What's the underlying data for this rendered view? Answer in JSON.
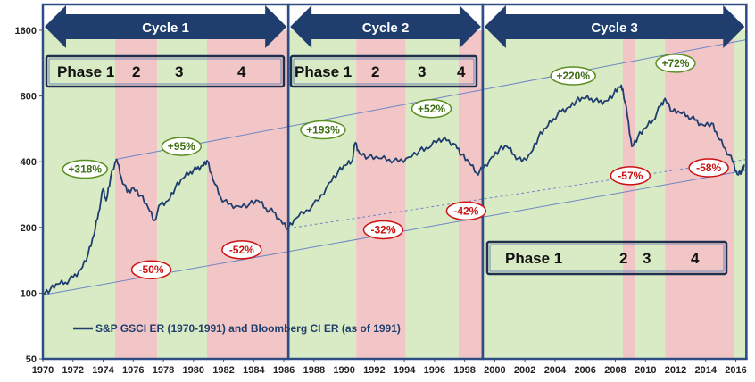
{
  "chart_data": {
    "type": "line",
    "y_scale": "log",
    "xlim": [
      1970,
      2016.8
    ],
    "ylim": [
      50,
      1600
    ],
    "x_ticks": [
      1970,
      1972,
      1974,
      1976,
      1978,
      1980,
      1982,
      1984,
      1986,
      1988,
      1990,
      1992,
      1994,
      1996,
      1998,
      2000,
      2002,
      2004,
      2006,
      2008,
      2010,
      2012,
      2014,
      2016
    ],
    "x_tick_labels": [
      "1970",
      "1972",
      "1974",
      "1976",
      "1978",
      "1980",
      "1982",
      "1984",
      "1986",
      "1988",
      "1990",
      "1992",
      "1994",
      "1996",
      "1998",
      "2000",
      "2002",
      "2004",
      "2006",
      "2008",
      "2010",
      "2012",
      "2014",
      "2016"
    ],
    "y_ticks": [
      50,
      100,
      200,
      400,
      800,
      1600
    ],
    "y_tick_labels": [
      "50",
      "100",
      "200",
      "400",
      "800",
      "1600"
    ],
    "grid": false,
    "series": [
      {
        "name": "S&P GSCI ER (1970-1991) and Bloomberg CI ER (as of 1991)",
        "color": "#1f3e6e",
        "points": [
          [
            1970,
            100
          ],
          [
            1970.5,
            104
          ],
          [
            1971,
            110
          ],
          [
            1971.5,
            112
          ],
          [
            1972,
            118
          ],
          [
            1972.5,
            128
          ],
          [
            1973,
            150
          ],
          [
            1973.4,
            185
          ],
          [
            1973.7,
            235
          ],
          [
            1974,
            300
          ],
          [
            1974.2,
            265
          ],
          [
            1974.5,
            340
          ],
          [
            1974.9,
            410
          ],
          [
            1975.2,
            340
          ],
          [
            1975.6,
            290
          ],
          [
            1976,
            305
          ],
          [
            1976.5,
            280
          ],
          [
            1977,
            245
          ],
          [
            1977.4,
            215
          ],
          [
            1977.8,
            255
          ],
          [
            1978.3,
            265
          ],
          [
            1978.8,
            305
          ],
          [
            1979.3,
            335
          ],
          [
            1979.8,
            360
          ],
          [
            1980.2,
            370
          ],
          [
            1980.6,
            385
          ],
          [
            1980.9,
            405
          ],
          [
            1981.3,
            330
          ],
          [
            1981.8,
            275
          ],
          [
            1982.3,
            255
          ],
          [
            1983,
            250
          ],
          [
            1983.7,
            255
          ],
          [
            1984.3,
            265
          ],
          [
            1984.8,
            245
          ],
          [
            1985.3,
            235
          ],
          [
            1985.8,
            215
          ],
          [
            1986.3,
            198
          ],
          [
            1986.8,
            220
          ],
          [
            1987.5,
            240
          ],
          [
            1988.3,
            265
          ],
          [
            1989,
            320
          ],
          [
            1989.6,
            360
          ],
          [
            1990.1,
            385
          ],
          [
            1990.5,
            400
          ],
          [
            1990.75,
            490
          ],
          [
            1991,
            440
          ],
          [
            1991.6,
            420
          ],
          [
            1992.3,
            415
          ],
          [
            1993,
            410
          ],
          [
            1993.6,
            400
          ],
          [
            1994.3,
            420
          ],
          [
            1995,
            450
          ],
          [
            1995.6,
            460
          ],
          [
            1996.3,
            510
          ],
          [
            1996.8,
            500
          ],
          [
            1997.4,
            480
          ],
          [
            1997.8,
            430
          ],
          [
            1998.3,
            395
          ],
          [
            1998.8,
            355
          ],
          [
            1999.2,
            370
          ],
          [
            1999.8,
            420
          ],
          [
            2000.3,
            455
          ],
          [
            2000.8,
            470
          ],
          [
            2001.3,
            430
          ],
          [
            2001.8,
            400
          ],
          [
            2002.4,
            440
          ],
          [
            2002.9,
            520
          ],
          [
            2003.4,
            570
          ],
          [
            2003.9,
            630
          ],
          [
            2004.4,
            680
          ],
          [
            2004.9,
            710
          ],
          [
            2005.4,
            760
          ],
          [
            2005.9,
            780
          ],
          [
            2006.4,
            780
          ],
          [
            2006.9,
            750
          ],
          [
            2007.4,
            760
          ],
          [
            2007.9,
            820
          ],
          [
            2008.3,
            880
          ],
          [
            2008.5,
            860
          ],
          [
            2008.8,
            650
          ],
          [
            2009.1,
            470
          ],
          [
            2009.5,
            520
          ],
          [
            2010,
            570
          ],
          [
            2010.5,
            620
          ],
          [
            2011,
            720
          ],
          [
            2011.3,
            780
          ],
          [
            2011.8,
            680
          ],
          [
            2012.3,
            670
          ],
          [
            2012.8,
            650
          ],
          [
            2013.3,
            620
          ],
          [
            2013.8,
            590
          ],
          [
            2014.4,
            600
          ],
          [
            2014.8,
            520
          ],
          [
            2015.3,
            460
          ],
          [
            2015.8,
            400
          ],
          [
            2016.1,
            350
          ],
          [
            2016.4,
            365
          ],
          [
            2016.6,
            385
          ]
        ]
      }
    ],
    "trend_lines": [
      {
        "style": "solid",
        "points": [
          [
            1970,
            98
          ],
          [
            2016.7,
            365
          ]
        ]
      },
      {
        "style": "solid",
        "points": [
          [
            1974.8,
            410
          ],
          [
            2016.7,
            1450
          ]
        ]
      },
      {
        "style": "dashed",
        "points": [
          [
            1986.3,
            198
          ],
          [
            2016.7,
            410
          ]
        ]
      }
    ],
    "legend": {
      "placement": "bottom-left",
      "label": "S&P GSCI ER (1970-1991) and Bloomberg CI ER (as of 1991)"
    },
    "cycles": [
      {
        "label": "Cycle 1",
        "start": 1970,
        "end": 1986.3
      },
      {
        "label": "Cycle 2",
        "start": 1986.3,
        "end": 1999.2
      },
      {
        "label": "Cycle 3",
        "start": 1999.2,
        "end": 2016.7
      }
    ],
    "phase_bands": [
      {
        "start": 1970,
        "end": 1974.8,
        "color": "#d9ebc4"
      },
      {
        "start": 1974.8,
        "end": 1977.6,
        "color": "#f2c6c6"
      },
      {
        "start": 1977.6,
        "end": 1980.9,
        "color": "#d9ebc4"
      },
      {
        "start": 1980.9,
        "end": 1986.3,
        "color": "#f2c6c6"
      },
      {
        "start": 1986.3,
        "end": 1990.8,
        "color": "#d9ebc4"
      },
      {
        "start": 1990.8,
        "end": 1994.1,
        "color": "#f2c6c6"
      },
      {
        "start": 1994.1,
        "end": 1997.6,
        "color": "#d9ebc4"
      },
      {
        "start": 1997.6,
        "end": 1999.2,
        "color": "#f2c6c6"
      },
      {
        "start": 1999.2,
        "end": 2008.5,
        "color": "#d9ebc4"
      },
      {
        "start": 2008.5,
        "end": 2009.3,
        "color": "#f2c6c6"
      },
      {
        "start": 2009.3,
        "end": 2011.3,
        "color": "#d9ebc4"
      },
      {
        "start": 2011.3,
        "end": 2015.9,
        "color": "#f2c6c6"
      },
      {
        "start": 2015.9,
        "end": 2016.8,
        "color": "#d9ebc4"
      }
    ],
    "phase_boxes": [
      {
        "labels": [
          "Phase 1",
          "2",
          "3",
          "4"
        ]
      },
      {
        "labels": [
          "Phase 1",
          "2",
          "3",
          "4"
        ]
      },
      {
        "labels": [
          "Phase 1",
          "2",
          "3",
          "4"
        ]
      }
    ],
    "annotations": [
      {
        "text": "+318%",
        "x": 1972.8,
        "y": 370,
        "kind": "gain"
      },
      {
        "text": "+95%",
        "x": 1979.2,
        "y": 470,
        "kind": "gain"
      },
      {
        "text": "-50%",
        "x": 1977.2,
        "y": 128,
        "kind": "loss"
      },
      {
        "text": "-52%",
        "x": 1983.2,
        "y": 158,
        "kind": "loss"
      },
      {
        "text": "+193%",
        "x": 1988.6,
        "y": 560,
        "kind": "gain"
      },
      {
        "text": "+52%",
        "x": 1995.8,
        "y": 700,
        "kind": "gain"
      },
      {
        "text": "-32%",
        "x": 1992.6,
        "y": 195,
        "kind": "loss"
      },
      {
        "text": "-42%",
        "x": 1998.1,
        "y": 238,
        "kind": "loss"
      },
      {
        "text": "+220%",
        "x": 2005.2,
        "y": 990,
        "kind": "gain"
      },
      {
        "text": "+72%",
        "x": 2012.0,
        "y": 1130,
        "kind": "gain"
      },
      {
        "text": "-57%",
        "x": 2009.0,
        "y": 345,
        "kind": "loss"
      },
      {
        "text": "-58%",
        "x": 2014.2,
        "y": 375,
        "kind": "loss"
      }
    ],
    "colors": {
      "gain_border": "#5b8f22",
      "gain_text": "#3c6e12",
      "loss_border": "#cc1111",
      "loss_text": "#cc1111",
      "arrow_fill": "#1f3e6e",
      "frame": "#2e4d86"
    }
  }
}
